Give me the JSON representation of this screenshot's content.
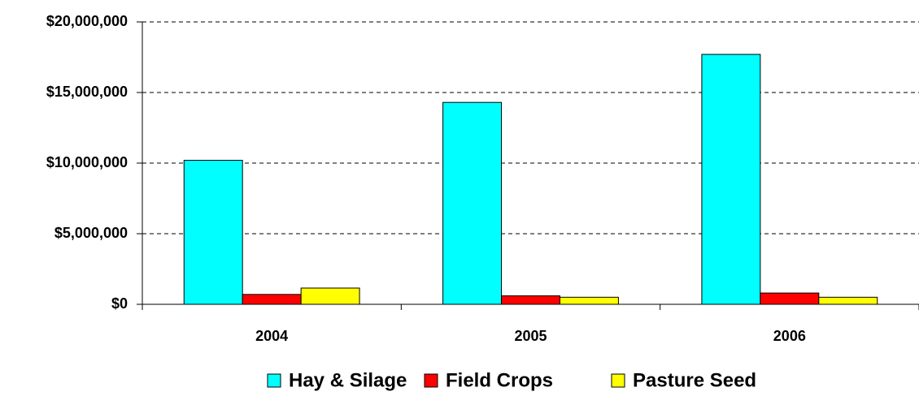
{
  "chart_data": {
    "type": "bar",
    "categories": [
      "2004",
      "2005",
      "2006"
    ],
    "series": [
      {
        "name": "Hay & Silage",
        "color": "#00ffff",
        "values": [
          10200000,
          14300000,
          17700000
        ]
      },
      {
        "name": "Field Crops",
        "color": "#ff0000",
        "values": [
          700000,
          600000,
          800000
        ]
      },
      {
        "name": "Pasture Seed",
        "color": "#ffff00",
        "values": [
          1150000,
          500000,
          500000
        ]
      }
    ],
    "ylim": [
      0,
      20000000
    ],
    "yticks": [
      {
        "value": 0,
        "label": "$0"
      },
      {
        "value": 5000000,
        "label": "$5,000,000"
      },
      {
        "value": 10000000,
        "label": "$10,000,000"
      },
      {
        "value": 15000000,
        "label": "$15,000,000"
      },
      {
        "value": 20000000,
        "label": "$20,000,000"
      }
    ],
    "grid": true,
    "legend": "bottom"
  }
}
